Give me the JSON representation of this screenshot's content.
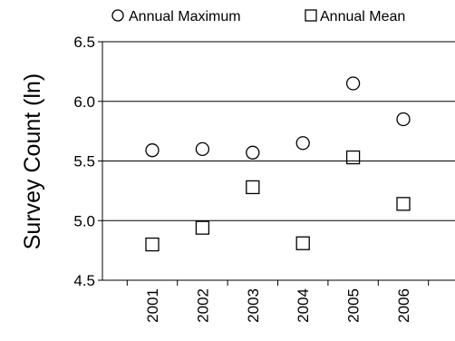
{
  "chart_data": {
    "type": "scatter",
    "title": "",
    "xlabel": "",
    "ylabel": "Survey Count (ln)",
    "ylim": [
      4.5,
      6.5
    ],
    "y_ticks": [
      "4.5",
      "5.0",
      "5.5",
      "6.0",
      "6.5"
    ],
    "categories": [
      "2001",
      "2002",
      "2003",
      "2004",
      "2005",
      "2006"
    ],
    "grid": "horizontal",
    "legend_position": "top",
    "series": [
      {
        "name": "Annual Maximum",
        "marker": "circle",
        "values": [
          5.59,
          5.6,
          5.57,
          5.65,
          6.15,
          5.85
        ]
      },
      {
        "name": "Annual Mean",
        "marker": "square",
        "values": [
          4.8,
          4.94,
          5.28,
          4.81,
          5.53,
          5.14
        ]
      }
    ]
  }
}
